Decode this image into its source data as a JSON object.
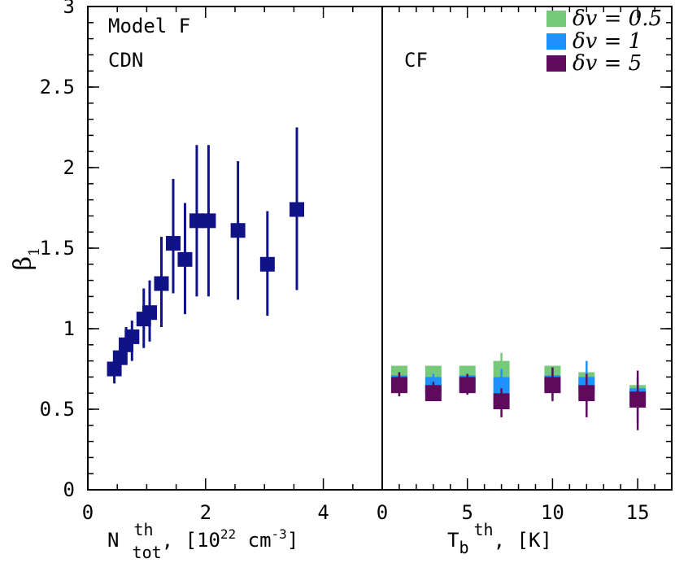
{
  "chart_data": [
    {
      "type": "scatter",
      "panel": "left",
      "annotations": [
        "Model F",
        "CDN"
      ],
      "ylabel": "β",
      "ylabel_sub": "1",
      "xlabel_main": "N",
      "xlabel_sup": "th",
      "xlabel_sub": "tot",
      "xlabel_unit_start": ", [10",
      "xlabel_unit_exp": "22",
      "xlabel_unit_mid": " cm",
      "xlabel_unit_exp2": "-3",
      "xlabel_unit_end": "]",
      "xlim": [
        0,
        5
      ],
      "ylim": [
        0,
        3
      ],
      "xticks": [
        "0",
        "2",
        "4"
      ],
      "yticks": [
        "0",
        "0.5",
        "1",
        "1.5",
        "2",
        "2.5",
        "3"
      ],
      "series": [
        {
          "color": "#101287",
          "points": [
            {
              "x": 0.45,
              "y": 0.75,
              "err": [
                0.66,
                0.8
              ]
            },
            {
              "x": 0.55,
              "y": 0.82,
              "err": [
                0.72,
                0.91
              ]
            },
            {
              "x": 0.65,
              "y": 0.9,
              "err": [
                0.83,
                1.01
              ]
            },
            {
              "x": 0.75,
              "y": 0.95,
              "err": [
                0.8,
                1.05
              ]
            },
            {
              "x": 0.95,
              "y": 1.06,
              "err": [
                0.88,
                1.25
              ]
            },
            {
              "x": 1.05,
              "y": 1.1,
              "err": [
                0.92,
                1.3
              ]
            },
            {
              "x": 1.25,
              "y": 1.28,
              "err": [
                1.01,
                1.57
              ]
            },
            {
              "x": 1.45,
              "y": 1.53,
              "err": [
                1.22,
                1.93
              ]
            },
            {
              "x": 1.65,
              "y": 1.43,
              "err": [
                1.09,
                1.78
              ]
            },
            {
              "x": 1.85,
              "y": 1.67,
              "err": [
                1.2,
                2.14
              ]
            },
            {
              "x": 2.05,
              "y": 1.67,
              "err": [
                1.2,
                2.14
              ]
            },
            {
              "x": 2.55,
              "y": 1.61,
              "err": [
                1.18,
                2.04
              ]
            },
            {
              "x": 3.05,
              "y": 1.4,
              "err": [
                1.08,
                1.73
              ]
            },
            {
              "x": 3.55,
              "y": 1.74,
              "err": [
                1.24,
                2.25
              ]
            }
          ]
        }
      ]
    },
    {
      "type": "scatter",
      "panel": "right",
      "annotations": [
        "CF"
      ],
      "xlabel_main": "T",
      "xlabel_sub": "b",
      "xlabel_sup": "th",
      "xlabel_unit": ", [K]",
      "xlim": [
        0,
        17
      ],
      "ylim": [
        0,
        3
      ],
      "xticks": [
        "0",
        "5",
        "10",
        "15"
      ],
      "legend_position": "top-right",
      "series": [
        {
          "name": "δv = 0.5",
          "color": "#77c97a",
          "points": [
            {
              "x": 1,
              "y": 0.72,
              "err": [
                0.68,
                0.75
              ]
            },
            {
              "x": 3,
              "y": 0.72,
              "err": [
                0.67,
                0.75
              ]
            },
            {
              "x": 5,
              "y": 0.72,
              "err": [
                0.67,
                0.75
              ]
            },
            {
              "x": 7,
              "y": 0.75,
              "err": [
                0.58,
                0.85
              ]
            },
            {
              "x": 10,
              "y": 0.72,
              "err": [
                0.66,
                0.75
              ]
            },
            {
              "x": 12,
              "y": 0.68,
              "err": [
                0.61,
                0.7
              ]
            },
            {
              "x": 15,
              "y": 0.6,
              "err": [
                0.55,
                0.65
              ]
            }
          ]
        },
        {
          "name": "δv = 1",
          "color": "#1e90ff",
          "points": [
            {
              "x": 1,
              "y": 0.66,
              "err": [
                0.6,
                0.72
              ]
            },
            {
              "x": 3,
              "y": 0.65,
              "err": [
                0.58,
                0.72
              ]
            },
            {
              "x": 5,
              "y": 0.66,
              "err": [
                0.6,
                0.72
              ]
            },
            {
              "x": 7,
              "y": 0.65,
              "err": [
                0.52,
                0.75
              ]
            },
            {
              "x": 10,
              "y": 0.66,
              "err": [
                0.58,
                0.75
              ]
            },
            {
              "x": 12,
              "y": 0.65,
              "err": [
                0.5,
                0.8
              ]
            },
            {
              "x": 15,
              "y": 0.58,
              "err": [
                0.42,
                0.7
              ]
            }
          ]
        },
        {
          "name": "δv = 5",
          "color": "#5e0b5e",
          "points": [
            {
              "x": 1,
              "y": 0.65,
              "err": [
                0.58,
                0.73
              ]
            },
            {
              "x": 3,
              "y": 0.6,
              "err": [
                0.56,
                0.67
              ]
            },
            {
              "x": 5,
              "y": 0.65,
              "err": [
                0.59,
                0.72
              ]
            },
            {
              "x": 7,
              "y": 0.55,
              "err": [
                0.45,
                0.63
              ]
            },
            {
              "x": 10,
              "y": 0.65,
              "err": [
                0.55,
                0.76
              ]
            },
            {
              "x": 12,
              "y": 0.6,
              "err": [
                0.45,
                0.72
              ]
            },
            {
              "x": 15,
              "y": 0.56,
              "err": [
                0.37,
                0.74
              ]
            }
          ]
        }
      ]
    }
  ]
}
